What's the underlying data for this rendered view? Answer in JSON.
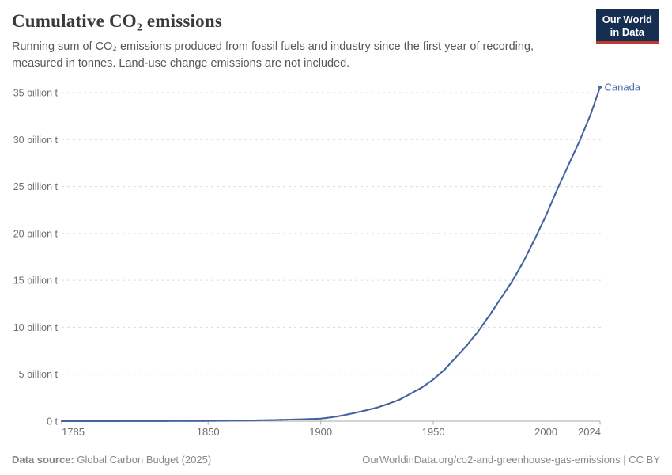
{
  "header": {
    "title": "Cumulative CO₂ emissions",
    "subtitle": "Running sum of CO₂ emissions produced from fossil fuels and industry since the first year of recording, measured in tonnes. Land-use change emissions are not included.",
    "logo_line1": "Our World",
    "logo_line2": "in Data"
  },
  "footer": {
    "source_label": "Data source:",
    "source_text": "Global Carbon Budget (2025)",
    "credit": "OurWorldinData.org/co2-and-greenhouse-gas-emissions | CC BY"
  },
  "chart_data": {
    "type": "line",
    "title": "Cumulative CO₂ emissions",
    "entity_label": "Canada",
    "unit": "billion tonnes",
    "line_color": "#44639e",
    "entity_label_color": "#4d6ba5",
    "grid_color": "#dcdcdc",
    "axis_color": "#a8a8a8",
    "tick_text_color": "#6e6e6e",
    "grid": "dashed-horizontal",
    "legend_position": "end-of-line",
    "x_min": 1785,
    "x_max": 2024,
    "x_ticks": [
      1785,
      1850,
      1900,
      1950,
      2000,
      2024
    ],
    "ylim": [
      0,
      35
    ],
    "y_ticks": [
      {
        "value": 0,
        "label": "0 t"
      },
      {
        "value": 5,
        "label": "5 billion t"
      },
      {
        "value": 10,
        "label": "10 billion t"
      },
      {
        "value": 15,
        "label": "15 billion t"
      },
      {
        "value": 20,
        "label": "20 billion t"
      },
      {
        "value": 25,
        "label": "25 billion t"
      },
      {
        "value": 30,
        "label": "30 billion t"
      },
      {
        "value": 35,
        "label": "35 billion t"
      }
    ],
    "series": [
      {
        "name": "Canada",
        "points": [
          [
            1785,
            0.0
          ],
          [
            1800,
            0.002
          ],
          [
            1810,
            0.004
          ],
          [
            1820,
            0.007
          ],
          [
            1830,
            0.011
          ],
          [
            1840,
            0.018
          ],
          [
            1850,
            0.03
          ],
          [
            1860,
            0.05
          ],
          [
            1870,
            0.08
          ],
          [
            1880,
            0.13
          ],
          [
            1890,
            0.19
          ],
          [
            1900,
            0.27
          ],
          [
            1905,
            0.42
          ],
          [
            1910,
            0.62
          ],
          [
            1915,
            0.88
          ],
          [
            1920,
            1.15
          ],
          [
            1925,
            1.45
          ],
          [
            1930,
            1.85
          ],
          [
            1935,
            2.3
          ],
          [
            1940,
            2.95
          ],
          [
            1945,
            3.6
          ],
          [
            1950,
            4.45
          ],
          [
            1955,
            5.5
          ],
          [
            1960,
            6.8
          ],
          [
            1965,
            8.1
          ],
          [
            1970,
            9.6
          ],
          [
            1975,
            11.3
          ],
          [
            1980,
            13.1
          ],
          [
            1985,
            14.9
          ],
          [
            1990,
            17.0
          ],
          [
            1995,
            19.4
          ],
          [
            2000,
            21.9
          ],
          [
            2005,
            24.7
          ],
          [
            2010,
            27.3
          ],
          [
            2015,
            29.9
          ],
          [
            2020,
            32.8
          ],
          [
            2024,
            35.6
          ]
        ]
      }
    ]
  }
}
